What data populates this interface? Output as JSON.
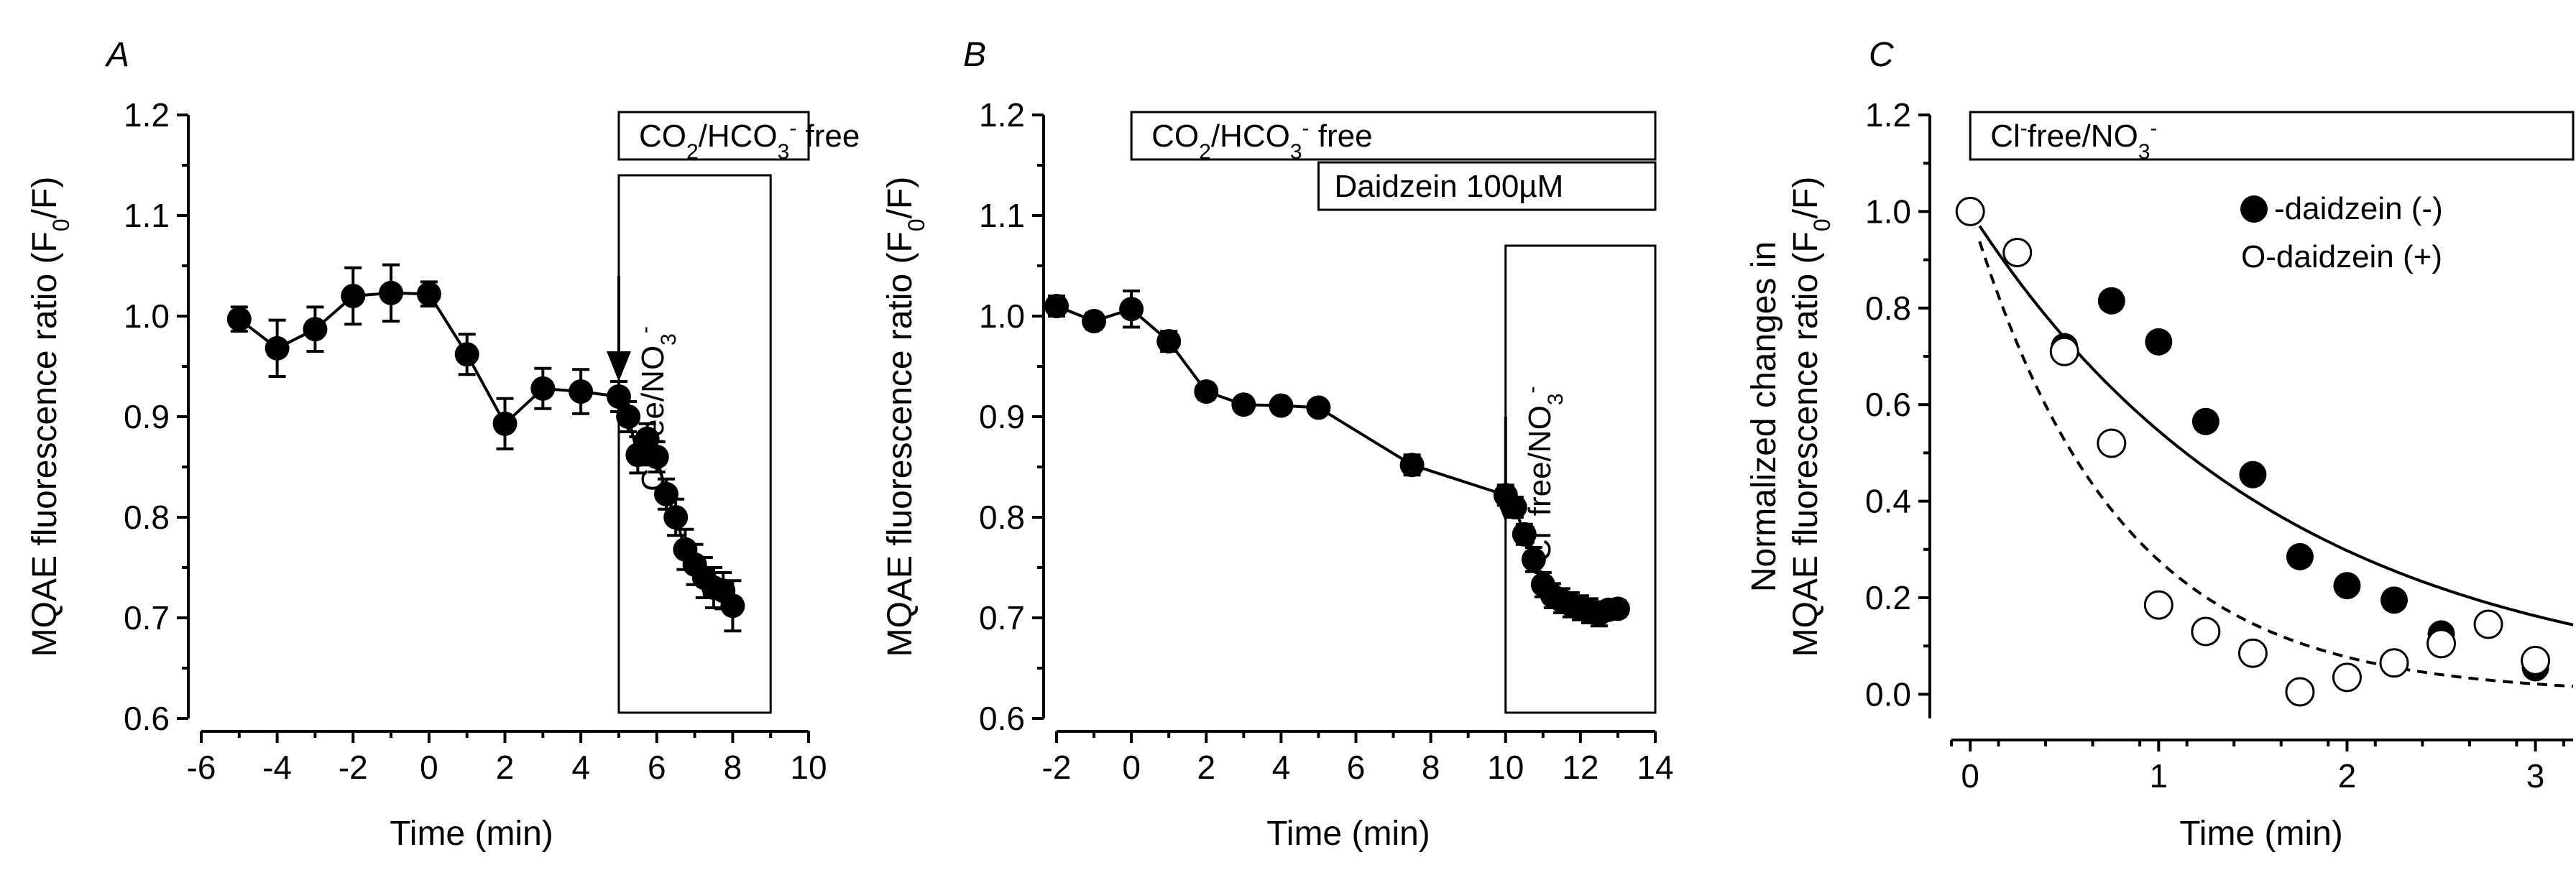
{
  "figure": {
    "colors": {
      "ink": "#000000",
      "background": "#ffffff"
    }
  },
  "chart_data": [
    {
      "panel": "A",
      "type": "line",
      "xlabel": "Time (min)",
      "ylabel": "MQAE fluorescence ratio (F",
      "ylabel_sub": "0",
      "ylabel_tail": "/F)",
      "xlim": [
        -6,
        10
      ],
      "ylim": [
        0.6,
        1.2
      ],
      "xticks": [
        -6,
        -4,
        -2,
        0,
        2,
        4,
        6,
        8,
        10
      ],
      "xtick_labels": [
        "-6",
        "-4",
        "-2",
        "0",
        "2",
        "4",
        "6",
        "8",
        "10"
      ],
      "yticks": [
        0.6,
        0.7,
        0.8,
        0.9,
        1.0,
        1.1,
        1.2
      ],
      "ytick_labels": [
        "0.6",
        "0.7",
        "0.8",
        "0.9",
        "1.0",
        "1.1",
        "1.2"
      ],
      "series": [
        {
          "name": "MQAE ratio",
          "marker": "filled",
          "x": [
            -5,
            -4,
            -3,
            -2,
            -1,
            0,
            1,
            2,
            3,
            4,
            5,
            5.25,
            5.5,
            5.75,
            6,
            6.25,
            6.5,
            6.75,
            7,
            7.25,
            7.5,
            7.75,
            8
          ],
          "y": [
            0.997,
            0.968,
            0.987,
            1.02,
            1.023,
            1.022,
            0.962,
            0.893,
            0.928,
            0.925,
            0.92,
            0.9,
            0.862,
            0.878,
            0.86,
            0.823,
            0.8,
            0.768,
            0.753,
            0.74,
            0.73,
            0.727,
            0.712
          ],
          "err": [
            0.012,
            0.028,
            0.022,
            0.028,
            0.028,
            0.012,
            0.02,
            0.025,
            0.02,
            0.022,
            0.015,
            0.015,
            0.018,
            0.015,
            0.015,
            0.015,
            0.018,
            0.02,
            0.02,
            0.02,
            0.02,
            0.018,
            0.025
          ]
        }
      ],
      "annotations": {
        "condition_box": {
          "main": "CO",
          "sub2": "2",
          "mid": "/HCO",
          "sub3": "3",
          "sup": "-",
          "tail": " free",
          "x_from": 5,
          "x_to": 10
        },
        "stimulus_box": {
          "x_from": 5,
          "x_to": 9,
          "y_from": 0.6,
          "y_to": 1.14
        },
        "arrow": {
          "x": 5,
          "y_from": 1.04,
          "y_to": 0.935
        },
        "rotated_label": {
          "a": "Cl",
          "sup": "-",
          "b": " fee/NO",
          "sub": "3",
          "sup2": "-"
        }
      }
    },
    {
      "panel": "B",
      "type": "line",
      "xlabel": "Time (min)",
      "ylabel": "MQAE fluorescence ratio (F",
      "ylabel_sub": "0",
      "ylabel_tail": "/F)",
      "xlim": [
        -2,
        14
      ],
      "ylim": [
        0.6,
        1.2
      ],
      "xticks": [
        -2,
        0,
        2,
        4,
        6,
        8,
        10,
        12,
        14
      ],
      "xtick_labels": [
        "-2",
        "0",
        "2",
        "4",
        "6",
        "8",
        "10",
        "12",
        "14"
      ],
      "yticks": [
        0.6,
        0.7,
        0.8,
        0.9,
        1.0,
        1.1,
        1.2
      ],
      "ytick_labels": [
        "0.6",
        "0.7",
        "0.8",
        "0.9",
        "1.0",
        "1.1",
        "1.2"
      ],
      "series": [
        {
          "name": "MQAE ratio",
          "marker": "filled",
          "x": [
            -2,
            -1,
            0,
            1,
            2,
            3,
            4,
            5,
            7.5,
            10,
            10.25,
            10.5,
            10.75,
            11,
            11.25,
            11.5,
            11.75,
            12,
            12.25,
            12.5,
            12.75,
            13
          ],
          "y": [
            1.01,
            0.995,
            1.007,
            0.975,
            0.925,
            0.912,
            0.911,
            0.909,
            0.852,
            0.822,
            0.81,
            0.783,
            0.758,
            0.733,
            0.722,
            0.717,
            0.713,
            0.71,
            0.707,
            0.704,
            0.708,
            0.709
          ],
          "err": [
            0.01,
            0.008,
            0.018,
            0.01,
            0.008,
            0.006,
            0.006,
            0.006,
            0.01,
            0.01,
            0.01,
            0.01,
            0.012,
            0.012,
            0.012,
            0.012,
            0.012,
            0.012,
            0.012,
            0.012,
            0.008,
            0.008
          ]
        }
      ],
      "annotations": {
        "condition_box": {
          "main": "CO",
          "sub2": "2",
          "mid": "/HCO",
          "sub3": "3",
          "sup": "-",
          "tail": " free",
          "x_from": 0,
          "x_to": 14
        },
        "drug_box": {
          "text": "Daidzein 100µM",
          "x_from": 5,
          "x_to": 14
        },
        "stimulus_box": {
          "x_from": 10,
          "x_to": 14,
          "y_from": 0.6,
          "y_to": 1.07
        },
        "arrow": {
          "x": 10,
          "y_from": 0.9,
          "y_to": 0.795
        },
        "rotated_label": {
          "a": "Cl",
          "sup": "-",
          "b": " free/NO",
          "sub": "3",
          "sup2": "-"
        }
      }
    },
    {
      "panel": "C",
      "type": "scatter",
      "xlabel": "Time (min)",
      "ylabel_line1": "Normalized changes in",
      "ylabel_line2": "MQAE fluorescence ratio (F",
      "ylabel_sub": "0",
      "ylabel_tail": "/F)",
      "xlim": [
        -0.1,
        3.2
      ],
      "ylim": [
        -0.05,
        1.2
      ],
      "xticks": [
        0,
        1,
        2,
        3
      ],
      "xtick_labels": [
        "0",
        "1",
        "2",
        "3"
      ],
      "yticks": [
        0.0,
        0.2,
        0.4,
        0.6,
        0.8,
        1.0,
        1.2
      ],
      "ytick_labels": [
        "0.0",
        "0.2",
        "0.4",
        "0.6",
        "0.8",
        "1.0",
        "1.2"
      ],
      "series": [
        {
          "name": "-daidzein (-)",
          "marker": "filled",
          "x": [
            0.5,
            0.75,
            1.0,
            1.25,
            1.5,
            1.75,
            2.0,
            2.25,
            2.5,
            3.0
          ],
          "y": [
            0.72,
            0.815,
            0.73,
            0.565,
            0.455,
            0.285,
            0.225,
            0.195,
            0.125,
            0.055
          ]
        },
        {
          "name": "O-daidzein (+)",
          "marker": "open",
          "x": [
            0,
            0.25,
            0.5,
            0.75,
            1.0,
            1.25,
            1.5,
            1.75,
            2.0,
            2.25,
            2.5,
            2.75,
            3.0
          ],
          "y": [
            1.0,
            0.915,
            0.71,
            0.52,
            0.185,
            0.13,
            0.085,
            0.005,
            0.035,
            0.065,
            0.105,
            0.145,
            0.07
          ]
        }
      ],
      "fits": [
        {
          "name": "daidzein (-) fit",
          "style": "solid",
          "tau": 1.65,
          "x_from": 0.05,
          "x_to": 3.2
        },
        {
          "name": "daidzein (+) fit",
          "style": "dashed",
          "tau": 0.78,
          "x_from": 0.05,
          "x_to": 3.2
        }
      ],
      "legend": [
        {
          "marker": "filled",
          "label": "-daidzein (-)"
        },
        {
          "marker": "open",
          "label": "O-daidzein (+)"
        }
      ],
      "annotations": {
        "condition_box": {
          "a": "Cl",
          "sup": "-",
          "b": "free/NO",
          "sub": "3",
          "sup2": "-",
          "x_from": 0,
          "x_to": 3.2
        }
      }
    }
  ]
}
